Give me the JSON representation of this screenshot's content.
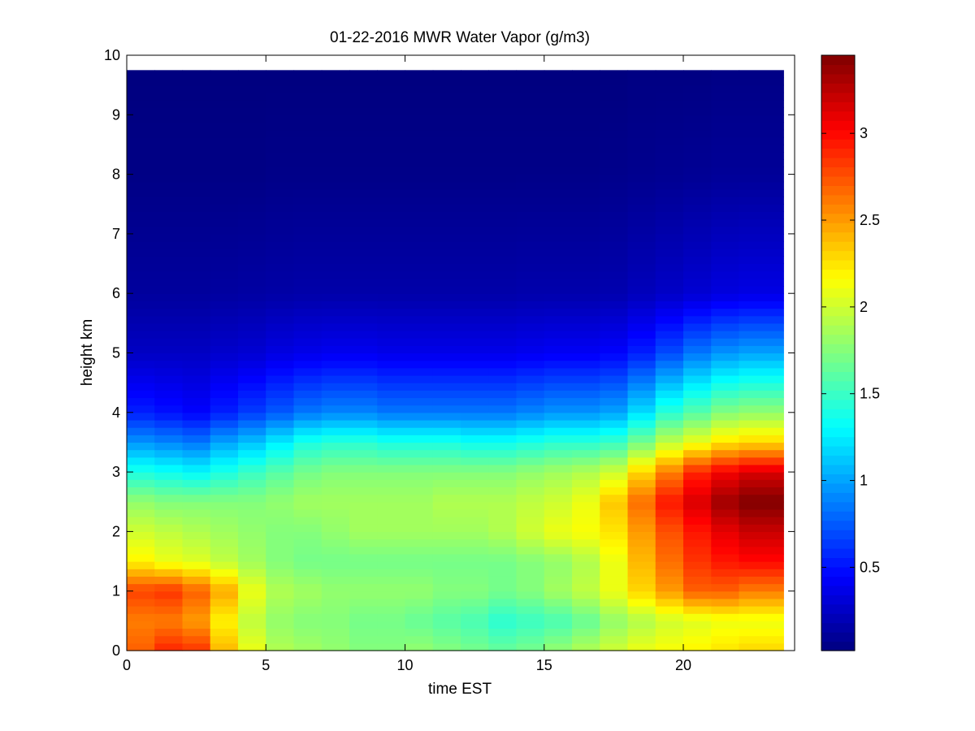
{
  "chart_data": {
    "type": "heatmap",
    "title": "01-22-2016 MWR Water Vapor (g/m3)",
    "xlabel": "time EST",
    "ylabel": "height km",
    "xlim": [
      0,
      24
    ],
    "ylim": [
      0,
      10
    ],
    "xticks": [
      0,
      5,
      10,
      15,
      20
    ],
    "yticks": [
      0,
      1,
      2,
      3,
      4,
      5,
      6,
      7,
      8,
      9,
      10
    ],
    "colorbar": {
      "colormap": "jet",
      "clim": [
        0.02,
        3.45
      ],
      "ticks": [
        0.5,
        1,
        1.5,
        2,
        2.5,
        3
      ]
    },
    "grid": false,
    "x": [
      0.5,
      1.5,
      2.5,
      3.5,
      4.5,
      5.5,
      6.5,
      7.5,
      8.5,
      9.5,
      10.5,
      11.5,
      12.5,
      13.5,
      14.5,
      15.5,
      16.5,
      17.5,
      18.5,
      19.5,
      20.5,
      21.5,
      22.5,
      23.5
    ],
    "x_edges": [
      0,
      1,
      2,
      3,
      4,
      5,
      6,
      7,
      8,
      9,
      10,
      11,
      12,
      13,
      14,
      15,
      16,
      17,
      18,
      19,
      20,
      21,
      22,
      23.6
    ],
    "heights": [
      0,
      0.5,
      1,
      1.5,
      2,
      2.5,
      3,
      3.5,
      4,
      5,
      6,
      8,
      9.75
    ],
    "values": [
      [
        2.7,
        2.9,
        2.85,
        2.4,
        2.1,
        1.9,
        1.85,
        1.8,
        1.75,
        1.75,
        1.8,
        1.75,
        1.7,
        1.65,
        1.7,
        1.8,
        1.9,
        2.0,
        2.1,
        2.15,
        2.2,
        2.25,
        2.3,
        2.2
      ],
      [
        2.6,
        2.6,
        2.5,
        2.2,
        1.95,
        1.8,
        1.75,
        1.75,
        1.7,
        1.7,
        1.65,
        1.6,
        1.55,
        1.45,
        1.5,
        1.55,
        1.65,
        1.8,
        1.9,
        2.0,
        2.05,
        2.1,
        2.1,
        2.05
      ],
      [
        2.8,
        2.85,
        2.7,
        2.45,
        2.1,
        1.9,
        1.85,
        1.8,
        1.8,
        1.8,
        1.8,
        1.75,
        1.75,
        1.7,
        1.75,
        1.85,
        1.95,
        2.1,
        2.3,
        2.5,
        2.7,
        2.7,
        2.6,
        2.55
      ],
      [
        2.2,
        2.1,
        2.05,
        1.95,
        1.85,
        1.75,
        1.7,
        1.7,
        1.7,
        1.7,
        1.7,
        1.7,
        1.7,
        1.7,
        1.75,
        1.8,
        1.9,
        2.1,
        2.4,
        2.65,
        2.85,
        2.95,
        3.0,
        2.9
      ],
      [
        2.0,
        1.95,
        1.9,
        1.85,
        1.8,
        1.75,
        1.75,
        1.8,
        1.85,
        1.85,
        1.85,
        1.85,
        1.85,
        1.9,
        2.0,
        2.1,
        2.15,
        2.25,
        2.5,
        2.75,
        2.95,
        3.1,
        3.2,
        3.15
      ],
      [
        1.8,
        1.75,
        1.75,
        1.75,
        1.75,
        1.8,
        1.85,
        1.85,
        1.85,
        1.85,
        1.85,
        1.9,
        1.9,
        1.9,
        1.95,
        2.0,
        2.1,
        2.35,
        2.65,
        2.95,
        3.15,
        3.35,
        3.45,
        3.4
      ],
      [
        1.4,
        1.35,
        1.3,
        1.4,
        1.5,
        1.6,
        1.7,
        1.75,
        1.75,
        1.75,
        1.75,
        1.75,
        1.75,
        1.75,
        1.8,
        1.85,
        1.9,
        2.0,
        2.3,
        2.6,
        2.9,
        3.05,
        3.15,
        3.1
      ],
      [
        0.95,
        0.9,
        0.85,
        1.0,
        1.1,
        1.25,
        1.4,
        1.45,
        1.45,
        1.4,
        1.4,
        1.4,
        1.35,
        1.35,
        1.4,
        1.45,
        1.45,
        1.5,
        1.7,
        1.95,
        2.1,
        2.25,
        2.3,
        2.3
      ],
      [
        0.55,
        0.5,
        0.45,
        0.55,
        0.65,
        0.75,
        0.85,
        0.9,
        0.9,
        0.85,
        0.85,
        0.85,
        0.85,
        0.85,
        0.9,
        0.95,
        0.95,
        1.0,
        1.2,
        1.45,
        1.6,
        1.75,
        1.8,
        1.8
      ],
      [
        0.25,
        0.25,
        0.25,
        0.28,
        0.3,
        0.35,
        0.38,
        0.4,
        0.4,
        0.38,
        0.38,
        0.38,
        0.38,
        0.38,
        0.4,
        0.42,
        0.42,
        0.45,
        0.55,
        0.7,
        0.85,
        0.95,
        1.0,
        1.0
      ],
      [
        0.12,
        0.12,
        0.12,
        0.13,
        0.14,
        0.15,
        0.16,
        0.16,
        0.16,
        0.16,
        0.16,
        0.16,
        0.16,
        0.16,
        0.17,
        0.17,
        0.17,
        0.18,
        0.22,
        0.26,
        0.3,
        0.34,
        0.36,
        0.36
      ],
      [
        0.04,
        0.04,
        0.04,
        0.04,
        0.04,
        0.05,
        0.05,
        0.05,
        0.05,
        0.05,
        0.05,
        0.05,
        0.05,
        0.05,
        0.05,
        0.05,
        0.05,
        0.06,
        0.07,
        0.08,
        0.09,
        0.1,
        0.1,
        0.1
      ],
      [
        0.02,
        0.02,
        0.02,
        0.02,
        0.02,
        0.02,
        0.02,
        0.02,
        0.02,
        0.02,
        0.02,
        0.02,
        0.02,
        0.02,
        0.02,
        0.02,
        0.02,
        0.02,
        0.03,
        0.03,
        0.03,
        0.04,
        0.04,
        0.04
      ]
    ]
  }
}
